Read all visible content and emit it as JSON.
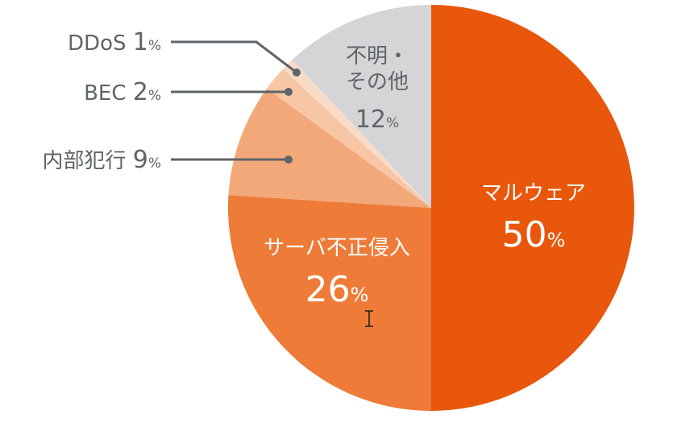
{
  "chart_data": {
    "type": "pie",
    "title": "",
    "start_angle_deg": 0,
    "direction": "clockwise",
    "unit": "%",
    "slices": [
      {
        "label": "マルウェア",
        "value": 50,
        "color": "#e8570c",
        "label_style": "inside-light"
      },
      {
        "label": "サーバ不正侵入",
        "value": 26,
        "color": "#ee7b38",
        "label_style": "inside-light"
      },
      {
        "label": "内部犯行",
        "value": 9,
        "color": "#f2a878",
        "label_style": "callout"
      },
      {
        "label": "BEC",
        "value": 2,
        "color": "#f6c6a5",
        "label_style": "callout"
      },
      {
        "label": "DDoS",
        "value": 1,
        "color": "#f9dcc7",
        "label_style": "callout"
      },
      {
        "label": "不明・その他",
        "value": 12,
        "color": "#d5d5d7",
        "label_style": "inside-dark"
      }
    ]
  }
}
